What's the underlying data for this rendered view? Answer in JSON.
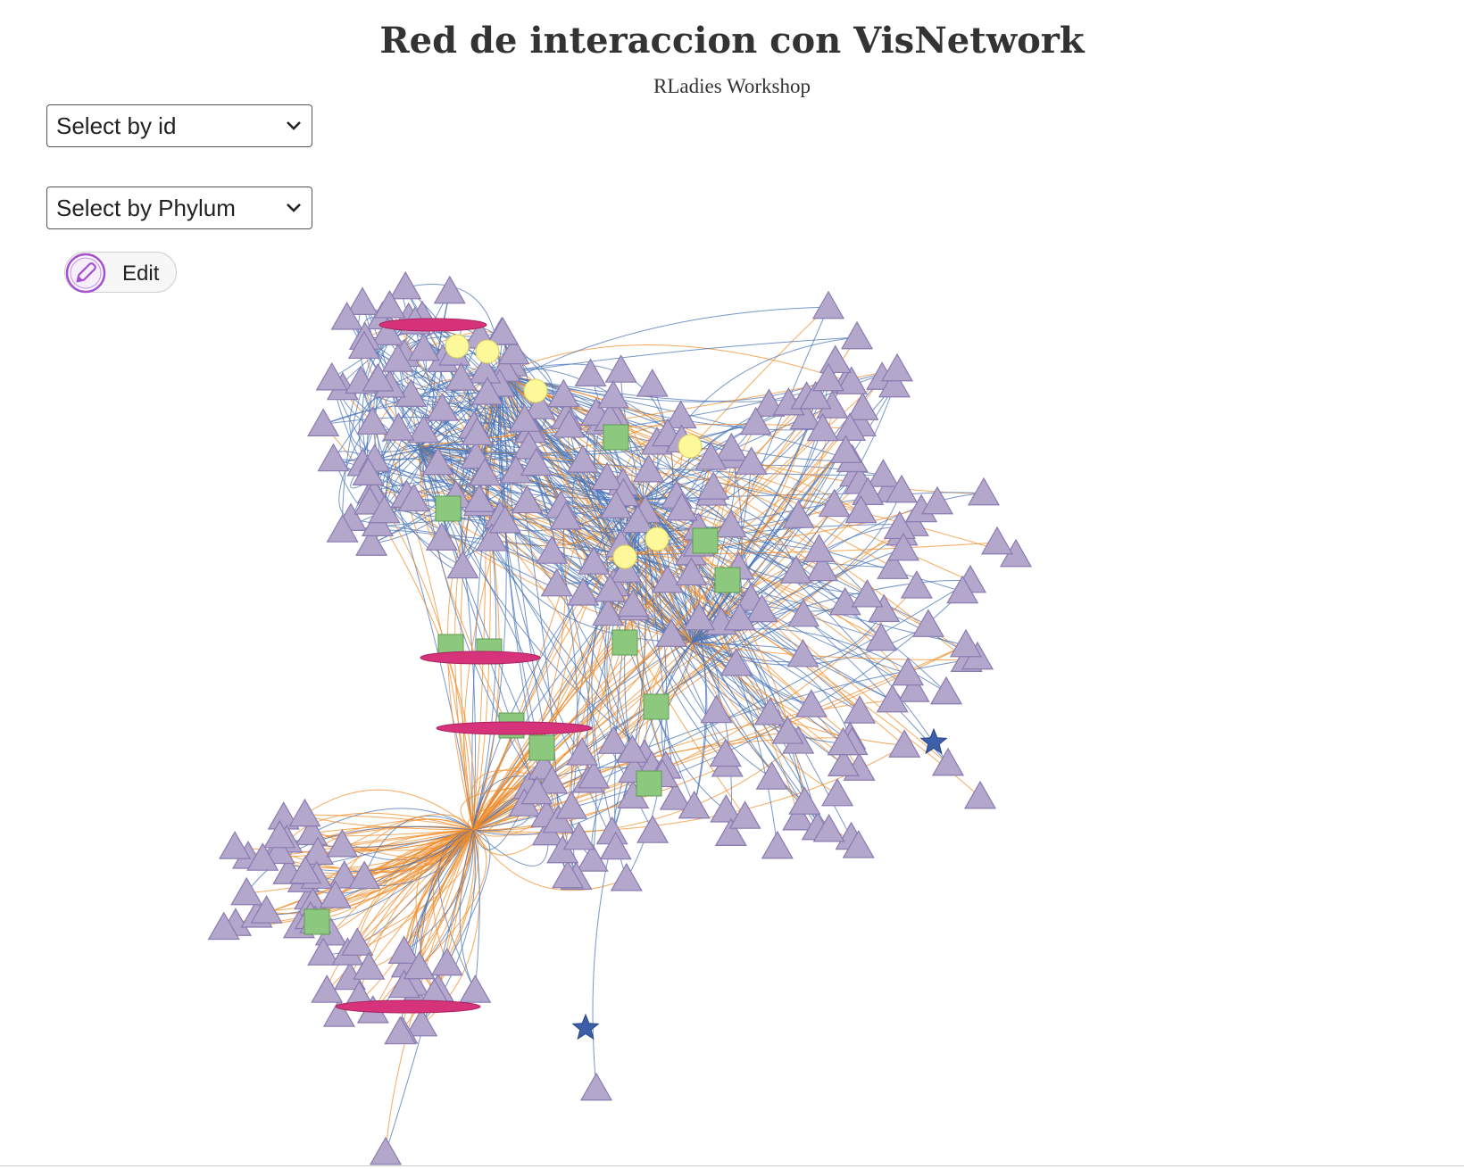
{
  "page": {
    "title": "Red de interaccion con VisNetwork",
    "subtitle": "RLadies Workshop"
  },
  "controls": {
    "select_id": {
      "selected": "Select by id"
    },
    "select_phylum": {
      "selected": "Select by Phylum"
    },
    "edit_label": "Edit"
  },
  "colors": {
    "triangle_fill": "#b3a7cc",
    "triangle_stroke": "#8a7bb0",
    "ellipse_fill": "#d6337a",
    "circle_fill": "#fdf89a",
    "square_fill": "#8cc97e",
    "star_fill": "#3b5fa8",
    "edge_blue": "#4a74b8",
    "edge_orange": "#f28c28"
  }
}
